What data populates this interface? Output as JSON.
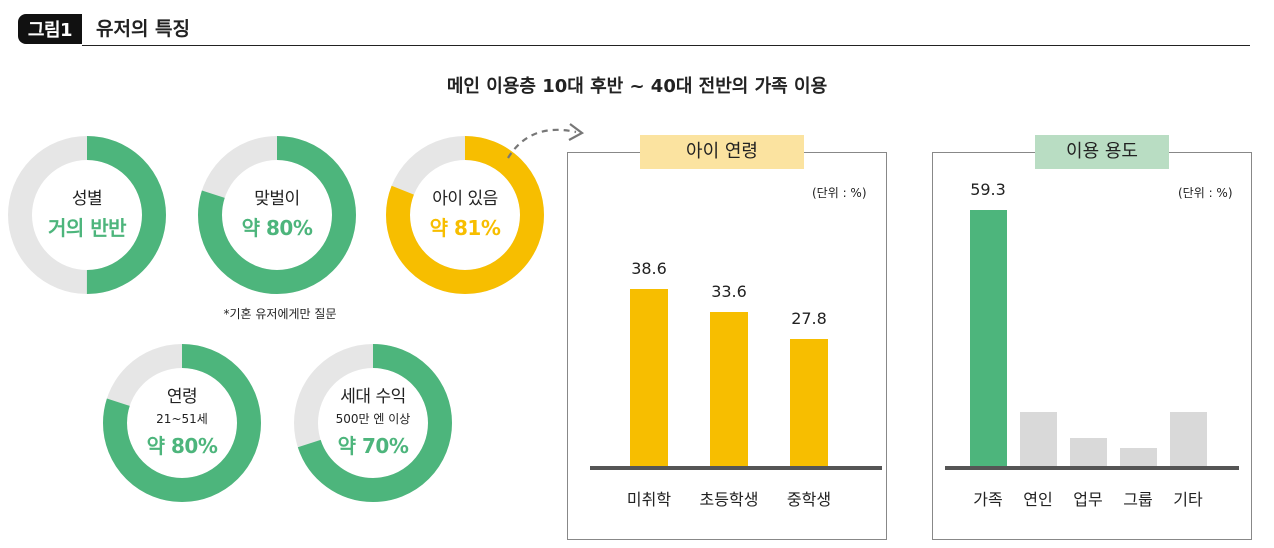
{
  "figure": {
    "badge": "그림1",
    "title": "유저의 특징"
  },
  "headline": "메인 이용층 10대 후반 ~ 40대 전반의 가족 이용",
  "colors": {
    "green": "#4db57c",
    "yellow": "#f7be00",
    "track": "#e6e6e6",
    "gray_bar": "#d9d9d9",
    "baseline": "#555555",
    "yellow_label_bg": "#fbe3a0",
    "green_label_bg": "#b9ddc3"
  },
  "donuts": [
    {
      "label": "성별",
      "sub": "",
      "value": "거의 반반",
      "fraction": 0.5,
      "color": "green"
    },
    {
      "label": "맞벌이",
      "sub": "",
      "value": "약 80%",
      "fraction": 0.8,
      "color": "green"
    },
    {
      "label": "아이 있음",
      "sub": "",
      "value": "약 81%",
      "fraction": 0.81,
      "color": "yellow"
    },
    {
      "label": "연령",
      "sub": "21~51세",
      "value": "약 80%",
      "fraction": 0.8,
      "color": "green"
    },
    {
      "label": "세대 수익",
      "sub": "500만 엔 이상",
      "value": "약 70%",
      "fraction": 0.7,
      "color": "green"
    }
  ],
  "footnote": "*기혼 유저에게만 질문",
  "chart_data": [
    {
      "type": "bar",
      "title": "아이 연령",
      "unit": "(단위 : %)",
      "categories": [
        "미취학",
        "초등학생",
        "중학생"
      ],
      "values": [
        38.6,
        33.6,
        27.8
      ],
      "value_labels": [
        "38.6",
        "33.6",
        "27.8"
      ],
      "ylim": [
        0,
        60
      ],
      "color": "yellow"
    },
    {
      "type": "bar",
      "title": "이용 용도",
      "unit": "(단위 : %)",
      "categories": [
        "가족",
        "연인",
        "업무",
        "그룹",
        "기타"
      ],
      "values": [
        59.3,
        12.4,
        6.6,
        4.1,
        12.4
      ],
      "value_labels": [
        "59.3",
        "",
        "",
        "",
        ""
      ],
      "ylim": [
        0,
        59.3
      ],
      "highlight_index": 0
    }
  ]
}
